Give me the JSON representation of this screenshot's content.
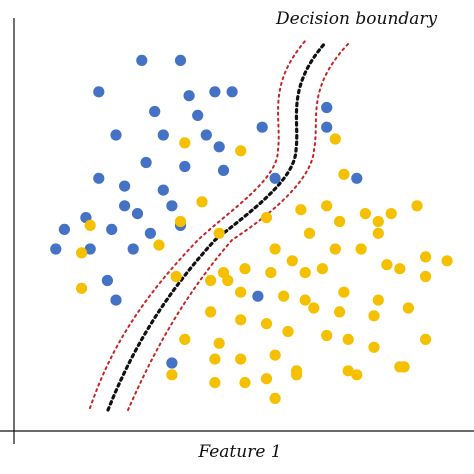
{
  "chart_data": {
    "type": "scatter",
    "title": "",
    "xlabel": "Feature 1",
    "ylabel": "",
    "annotations": [
      "Decision boundary"
    ],
    "xlim": [
      0,
      100
    ],
    "ylim": [
      0,
      100
    ],
    "grid": false,
    "legend": "none",
    "colors": {
      "blue": "#4472c4",
      "gold": "#f5c000",
      "boundary": "#111111",
      "margin": "#cc0000"
    },
    "series": [
      {
        "color": "blue",
        "points": [
          [
            26,
            91
          ],
          [
            35,
            91
          ],
          [
            16,
            83
          ],
          [
            37,
            82
          ],
          [
            43,
            83
          ],
          [
            47,
            83
          ],
          [
            39,
            77
          ],
          [
            29,
            78
          ],
          [
            69,
            79
          ],
          [
            20,
            72
          ],
          [
            31,
            72
          ],
          [
            41,
            72
          ],
          [
            44,
            69
          ],
          [
            54,
            74
          ],
          [
            69,
            74
          ],
          [
            27,
            65
          ],
          [
            36,
            64
          ],
          [
            45,
            63
          ],
          [
            16,
            61
          ],
          [
            22,
            59
          ],
          [
            31,
            58
          ],
          [
            57,
            61
          ],
          [
            76,
            61
          ],
          [
            22,
            54
          ],
          [
            33,
            54
          ],
          [
            13,
            51
          ],
          [
            25,
            52
          ],
          [
            35,
            49
          ],
          [
            8,
            48
          ],
          [
            19,
            48
          ],
          [
            28,
            47
          ],
          [
            6,
            43
          ],
          [
            14,
            43
          ],
          [
            24,
            43
          ],
          [
            18,
            35
          ],
          [
            20,
            30
          ],
          [
            53,
            31
          ],
          [
            33,
            14
          ]
        ]
      },
      {
        "color": "gold",
        "points": [
          [
            36,
            70
          ],
          [
            49,
            68
          ],
          [
            71,
            71
          ],
          [
            73,
            62
          ],
          [
            40,
            55
          ],
          [
            63,
            53
          ],
          [
            69,
            54
          ],
          [
            72,
            50
          ],
          [
            78,
            52
          ],
          [
            81,
            50
          ],
          [
            84,
            52
          ],
          [
            90,
            54
          ],
          [
            35,
            50
          ],
          [
            14,
            49
          ],
          [
            12,
            42
          ],
          [
            30,
            44
          ],
          [
            44,
            47
          ],
          [
            55,
            51
          ],
          [
            65,
            47
          ],
          [
            71,
            43
          ],
          [
            77,
            43
          ],
          [
            81,
            47
          ],
          [
            57,
            43
          ],
          [
            61,
            40
          ],
          [
            68,
            38
          ],
          [
            83,
            39
          ],
          [
            86,
            38
          ],
          [
            92,
            41
          ],
          [
            45,
            37
          ],
          [
            50,
            38
          ],
          [
            56,
            37
          ],
          [
            64,
            37
          ],
          [
            97,
            40
          ],
          [
            92,
            36
          ],
          [
            12,
            33
          ],
          [
            34,
            36
          ],
          [
            42,
            35
          ],
          [
            46,
            35
          ],
          [
            49,
            32
          ],
          [
            59,
            31
          ],
          [
            64,
            30
          ],
          [
            73,
            32
          ],
          [
            81,
            30
          ],
          [
            42,
            27
          ],
          [
            49,
            25
          ],
          [
            66,
            28
          ],
          [
            72,
            27
          ],
          [
            80,
            26
          ],
          [
            88,
            28
          ],
          [
            36,
            20
          ],
          [
            44,
            19
          ],
          [
            55,
            24
          ],
          [
            60,
            22
          ],
          [
            69,
            21
          ],
          [
            74,
            20
          ],
          [
            80,
            18
          ],
          [
            92,
            20
          ],
          [
            43,
            15
          ],
          [
            49,
            15
          ],
          [
            57,
            16
          ],
          [
            62,
            12
          ],
          [
            74,
            12
          ],
          [
            86,
            13
          ],
          [
            33,
            11
          ],
          [
            43,
            9
          ],
          [
            50,
            9
          ],
          [
            55,
            10
          ],
          [
            57,
            5
          ],
          [
            62,
            11
          ],
          [
            76,
            11
          ],
          [
            87,
            13
          ]
        ]
      }
    ]
  }
}
